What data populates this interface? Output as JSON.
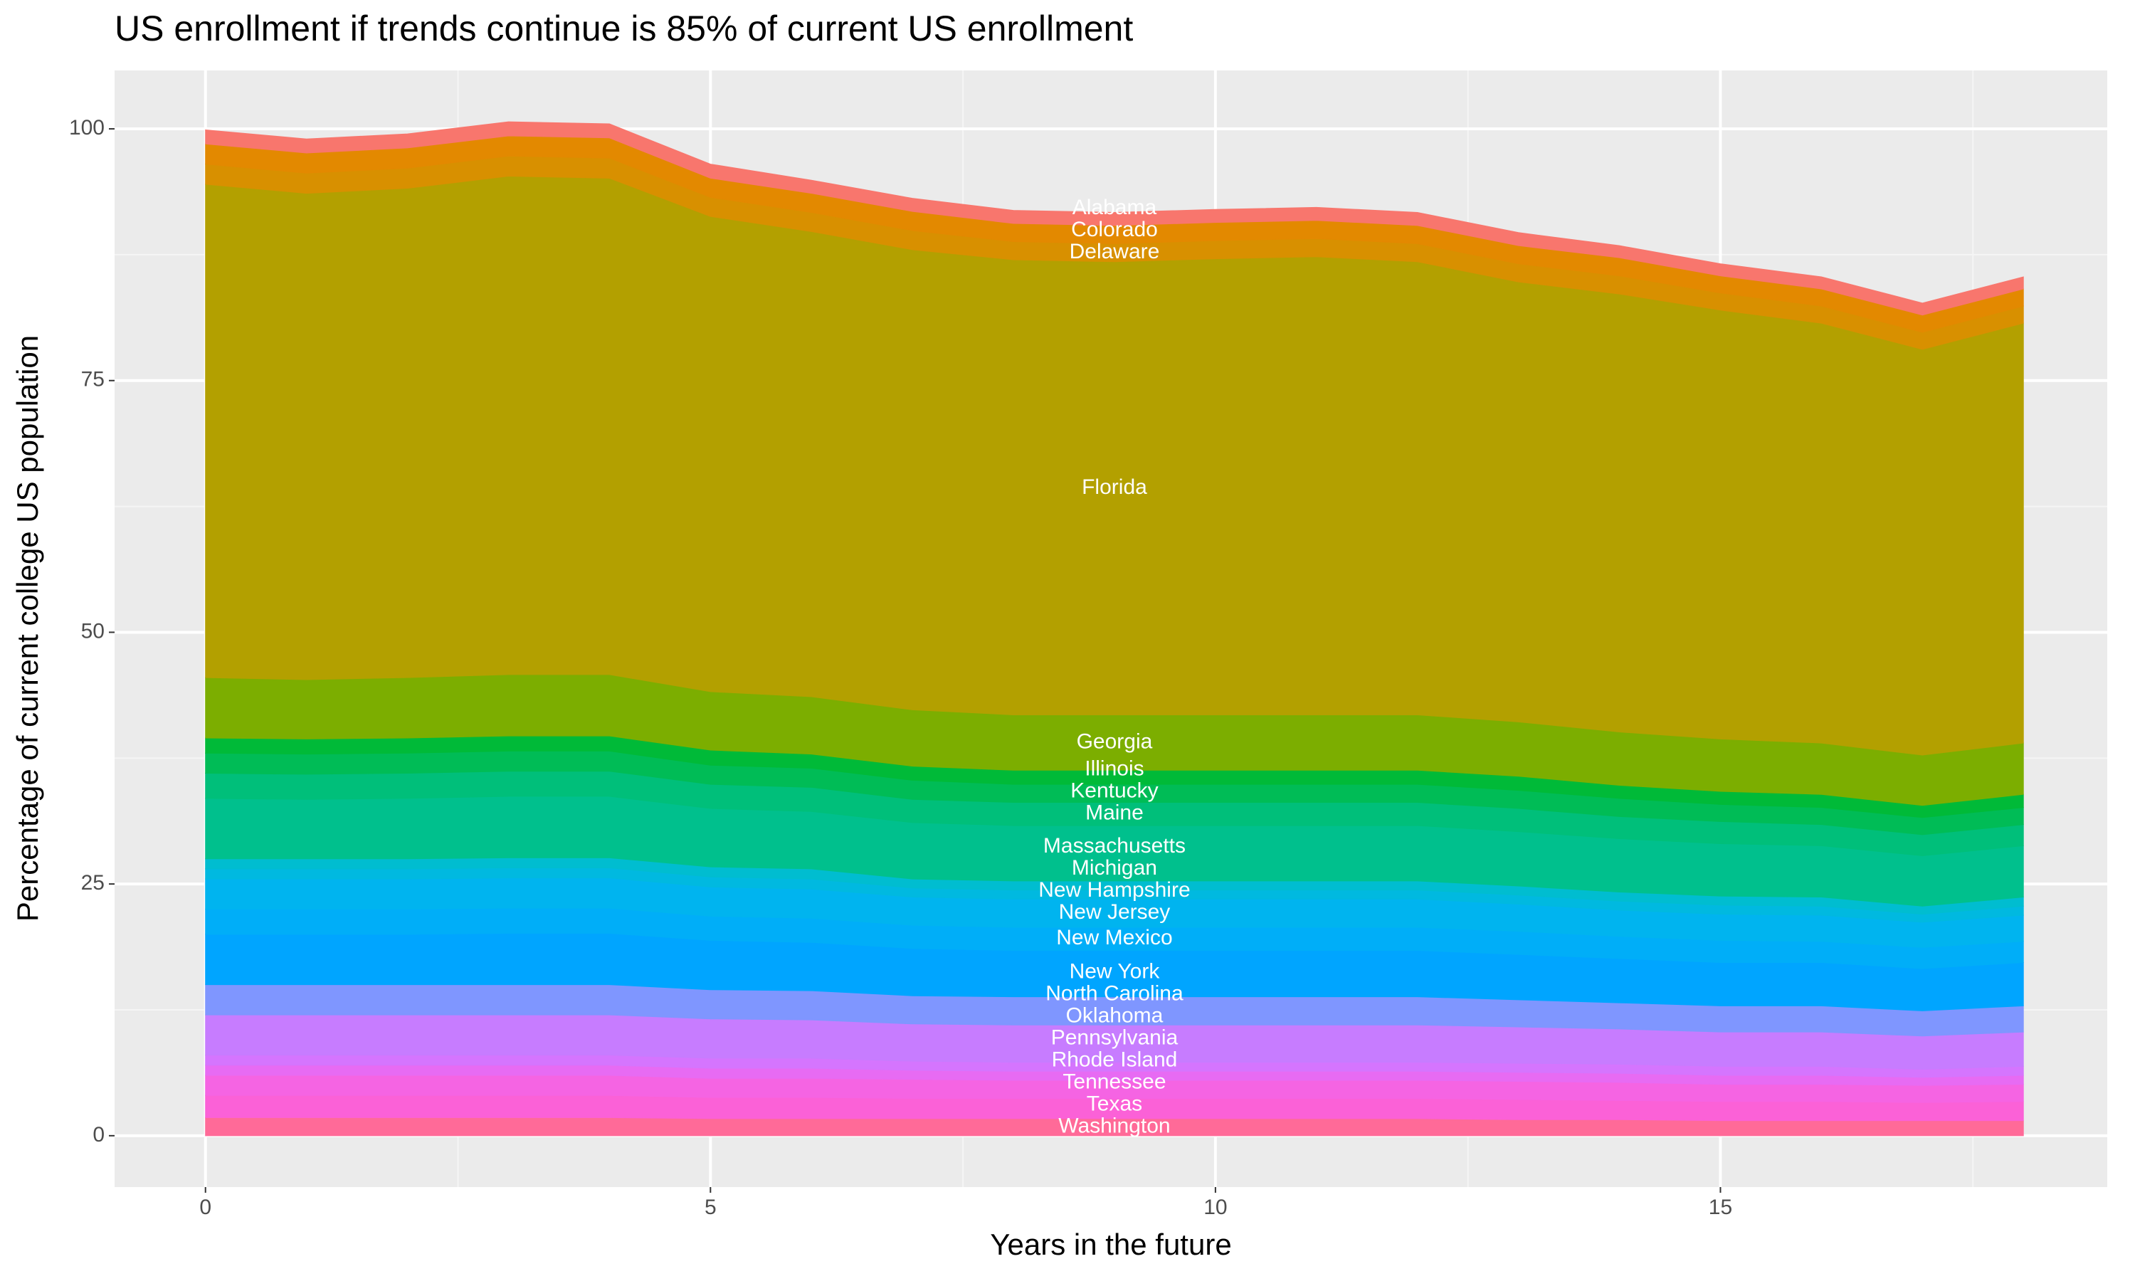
{
  "chart_data": {
    "type": "area",
    "stacked": true,
    "title": "US enrollment if trends continue is 85% of current US enrollment",
    "x_label": "Years in the future",
    "y_label": "Percentage of current college US population",
    "x": [
      0,
      1,
      2,
      3,
      4,
      5,
      6,
      7,
      8,
      9,
      10,
      11,
      12,
      13,
      14,
      15,
      16,
      17,
      18
    ],
    "xlim": [
      -0.9,
      18.83
    ],
    "ylim": [
      -5.1,
      105.8
    ],
    "xticks": [
      0,
      5,
      10,
      15
    ],
    "yticks": [
      0,
      25,
      50,
      75,
      100
    ],
    "grid": true,
    "series": [
      {
        "name": "Washington",
        "color": "#ff6a98",
        "values": [
          1.8,
          1.8,
          1.8,
          1.8,
          1.8,
          1.7,
          1.7,
          1.7,
          1.7,
          1.7,
          1.7,
          1.7,
          1.7,
          1.6,
          1.6,
          1.5,
          1.5,
          1.5,
          1.5
        ]
      },
      {
        "name": "Texas",
        "color": "#fb61d7",
        "values": [
          2.2,
          2.2,
          2.2,
          2.2,
          2.2,
          2.1,
          2.1,
          2.0,
          2.0,
          2.0,
          2.0,
          2.0,
          2.0,
          2.0,
          1.9,
          1.9,
          1.9,
          1.8,
          1.9
        ]
      },
      {
        "name": "Tennessee",
        "color": "#f564e3",
        "values": [
          2.0,
          2.0,
          2.0,
          2.0,
          2.0,
          1.9,
          1.9,
          1.9,
          1.8,
          1.8,
          1.8,
          1.8,
          1.8,
          1.8,
          1.8,
          1.7,
          1.7,
          1.7,
          1.7
        ]
      },
      {
        "name": "Rhode Island",
        "color": "#e76bf3",
        "values": [
          1.0,
          1.0,
          1.0,
          1.0,
          1.0,
          1.0,
          1.0,
          0.9,
          0.9,
          0.9,
          0.9,
          0.9,
          0.9,
          0.9,
          0.9,
          0.9,
          0.9,
          0.8,
          0.9
        ]
      },
      {
        "name": "Pennsylvania",
        "color": "#d575fe",
        "values": [
          1.0,
          1.0,
          1.0,
          1.0,
          1.0,
          1.0,
          1.0,
          0.9,
          0.9,
          0.9,
          0.9,
          0.9,
          0.9,
          0.9,
          0.9,
          0.9,
          0.9,
          0.8,
          0.9
        ]
      },
      {
        "name": "Oklahoma",
        "color": "#c77cff",
        "values": [
          4.0,
          4.0,
          4.0,
          4.0,
          4.0,
          3.9,
          3.8,
          3.7,
          3.7,
          3.7,
          3.7,
          3.7,
          3.7,
          3.6,
          3.5,
          3.4,
          3.4,
          3.3,
          3.4
        ]
      },
      {
        "name": "North Carolina",
        "color": "#7f96ff",
        "values": [
          3.0,
          3.0,
          3.0,
          3.0,
          3.0,
          2.9,
          2.9,
          2.8,
          2.8,
          2.8,
          2.8,
          2.8,
          2.8,
          2.7,
          2.6,
          2.6,
          2.6,
          2.5,
          2.6
        ]
      },
      {
        "name": "New York",
        "color": "#00a5ff",
        "values": [
          5.0,
          5.0,
          5.0,
          5.1,
          5.1,
          4.9,
          4.8,
          4.7,
          4.6,
          4.6,
          4.6,
          4.6,
          4.6,
          4.5,
          4.4,
          4.3,
          4.3,
          4.2,
          4.3
        ]
      },
      {
        "name": "New Mexico",
        "color": "#00aef8",
        "values": [
          2.5,
          2.5,
          2.5,
          2.5,
          2.5,
          2.4,
          2.4,
          2.3,
          2.3,
          2.3,
          2.3,
          2.3,
          2.3,
          2.3,
          2.2,
          2.2,
          2.1,
          2.1,
          2.1
        ]
      },
      {
        "name": "New Jersey",
        "color": "#00b4ef",
        "values": [
          3.0,
          3.0,
          3.0,
          3.0,
          3.0,
          2.9,
          2.9,
          2.8,
          2.8,
          2.8,
          2.8,
          2.8,
          2.8,
          2.7,
          2.6,
          2.6,
          2.6,
          2.5,
          2.6
        ]
      },
      {
        "name": "New Hampshire",
        "color": "#00b9e0",
        "values": [
          1.0,
          1.0,
          1.0,
          1.0,
          1.0,
          1.0,
          1.0,
          0.9,
          0.9,
          0.9,
          0.9,
          0.9,
          0.9,
          0.9,
          0.9,
          0.9,
          0.9,
          0.8,
          0.9
        ]
      },
      {
        "name": "Michigan",
        "color": "#00bdd0",
        "values": [
          1.0,
          1.0,
          1.0,
          1.0,
          1.0,
          1.0,
          1.0,
          0.9,
          0.9,
          0.9,
          0.9,
          0.9,
          0.9,
          0.9,
          0.9,
          0.9,
          0.9,
          0.8,
          0.9
        ]
      },
      {
        "name": "Massachusetts",
        "color": "#00c08d",
        "values": [
          6.0,
          5.9,
          6.0,
          6.1,
          6.1,
          5.8,
          5.7,
          5.6,
          5.5,
          5.5,
          5.5,
          5.5,
          5.5,
          5.4,
          5.3,
          5.2,
          5.1,
          5.0,
          5.1
        ]
      },
      {
        "name": "Maine",
        "color": "#00bf7a",
        "values": [
          2.5,
          2.5,
          2.5,
          2.5,
          2.5,
          2.4,
          2.4,
          2.3,
          2.3,
          2.3,
          2.3,
          2.3,
          2.3,
          2.3,
          2.2,
          2.2,
          2.1,
          2.1,
          2.1
        ]
      },
      {
        "name": "Kentucky",
        "color": "#00bc56",
        "values": [
          2.0,
          2.0,
          2.0,
          2.0,
          2.0,
          1.9,
          1.9,
          1.9,
          1.8,
          1.8,
          1.8,
          1.8,
          1.8,
          1.8,
          1.8,
          1.7,
          1.7,
          1.7,
          1.7
        ]
      },
      {
        "name": "Illinois",
        "color": "#00ba38",
        "values": [
          1.5,
          1.5,
          1.5,
          1.5,
          1.5,
          1.5,
          1.4,
          1.4,
          1.4,
          1.4,
          1.4,
          1.4,
          1.4,
          1.4,
          1.3,
          1.3,
          1.3,
          1.2,
          1.3
        ]
      },
      {
        "name": "Georgia",
        "color": "#7cae00",
        "values": [
          6.0,
          5.9,
          6.0,
          6.1,
          6.1,
          5.8,
          5.7,
          5.6,
          5.5,
          5.5,
          5.5,
          5.5,
          5.5,
          5.4,
          5.3,
          5.2,
          5.1,
          5.0,
          5.1
        ]
      },
      {
        "name": "Florida",
        "color": "#b3a000",
        "values": [
          49.0,
          48.3,
          48.6,
          49.5,
          49.3,
          47.2,
          46.2,
          45.7,
          45.2,
          45.0,
          45.3,
          45.5,
          45.0,
          43.7,
          43.5,
          42.6,
          41.7,
          40.3,
          41.7
        ]
      },
      {
        "name": "Delaware",
        "color": "#d89000",
        "values": [
          2.0,
          2.0,
          2.0,
          2.0,
          2.0,
          1.9,
          1.9,
          1.9,
          1.8,
          1.8,
          1.8,
          1.8,
          1.8,
          1.8,
          1.8,
          1.7,
          1.7,
          1.7,
          1.7
        ]
      },
      {
        "name": "Colorado",
        "color": "#e38900",
        "values": [
          2.0,
          2.0,
          2.0,
          2.0,
          2.0,
          1.9,
          1.9,
          1.9,
          1.8,
          1.8,
          1.8,
          1.8,
          1.8,
          1.8,
          1.8,
          1.7,
          1.7,
          1.7,
          1.7
        ]
      },
      {
        "name": "Alabama",
        "color": "#f8766d",
        "values": [
          1.4,
          1.4,
          1.4,
          1.4,
          1.4,
          1.4,
          1.3,
          1.3,
          1.3,
          1.3,
          1.3,
          1.3,
          1.3,
          1.3,
          1.2,
          1.2,
          1.2,
          1.2,
          1.2
        ]
      }
    ]
  }
}
